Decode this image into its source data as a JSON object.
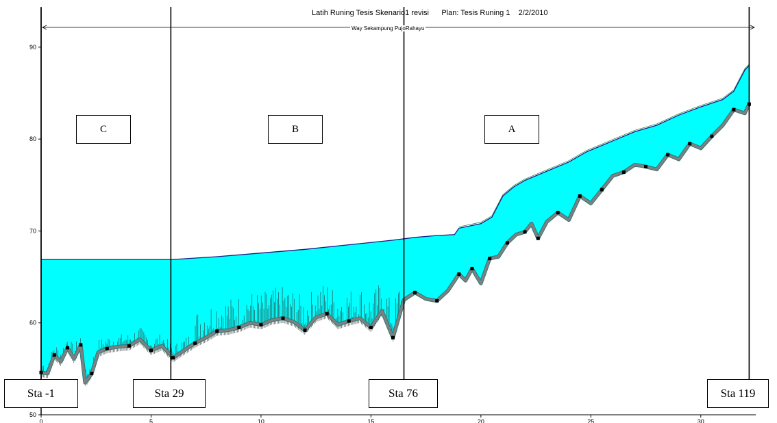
{
  "header": {
    "title": "Latih Runing Tesis Skenario1 revisi      Plan: Tesis Runing 1    2/2/2010",
    "reach_label": "Way Sekampung PujoRahayu"
  },
  "zones": [
    {
      "label": "C"
    },
    {
      "label": "B"
    },
    {
      "label": "A"
    }
  ],
  "stations": [
    {
      "label": "Sta -1",
      "x": 0.0
    },
    {
      "label": "Sta 29",
      "x": 5.9
    },
    {
      "label": "Sta 76",
      "x": 16.5
    },
    {
      "label": "Sta 119",
      "x": 32.2
    }
  ],
  "colors": {
    "water_fill": "#00FFFF",
    "water_surface": "#1a1a80",
    "channel_bed": "#808080",
    "bed_markers": "#000000",
    "edge_green": "#2e8b57"
  },
  "chart_data": {
    "type": "area",
    "title": "Latih Runing Tesis Skenario1 revisi      Plan: Tesis Runing 1    2/2/2010",
    "xlabel": "",
    "ylabel": "",
    "xlim": [
      0,
      32.5
    ],
    "ylim": [
      50,
      92
    ],
    "yticks": [
      50,
      60,
      70,
      80,
      90
    ],
    "xticks": [
      0,
      5,
      10,
      15,
      20,
      25,
      30
    ],
    "grid": false,
    "series": [
      {
        "role": "water_surface",
        "x": [
          0,
          2,
          4,
          6,
          8,
          10,
          12,
          14,
          16,
          17,
          18,
          18.8,
          19,
          20,
          20.5,
          21,
          21.5,
          22,
          23,
          24,
          24.8,
          25.2,
          26,
          27,
          28,
          29,
          30,
          31,
          31.5,
          32,
          32.2
        ],
        "values": [
          66.9,
          66.9,
          66.9,
          66.9,
          67.2,
          67.6,
          68.0,
          68.5,
          69.0,
          69.3,
          69.5,
          69.6,
          70.3,
          70.8,
          71.5,
          73.8,
          74.8,
          75.5,
          76.5,
          77.5,
          78.6,
          79.0,
          79.8,
          80.8,
          81.5,
          82.6,
          83.5,
          84.3,
          85.2,
          87.5,
          88.0
        ]
      },
      {
        "role": "channel_bed",
        "x": [
          0,
          0.3,
          0.6,
          0.9,
          1.2,
          1.5,
          1.8,
          2.0,
          2.3,
          2.6,
          3.0,
          3.5,
          4.0,
          4.5,
          5.0,
          5.5,
          6.0,
          6.5,
          7.0,
          7.5,
          8.0,
          8.5,
          9.0,
          9.5,
          10.0,
          10.5,
          11.0,
          11.5,
          12.0,
          12.5,
          13.0,
          13.5,
          14.0,
          14.5,
          15.0,
          15.5,
          16.0,
          16.5,
          17.0,
          17.5,
          18.0,
          18.5,
          19.0,
          19.3,
          19.6,
          20.0,
          20.4,
          20.8,
          21.2,
          21.6,
          22.0,
          22.3,
          22.6,
          23.0,
          23.5,
          24.0,
          24.5,
          25.0,
          25.5,
          26.0,
          26.5,
          27.0,
          27.5,
          28.0,
          28.5,
          29.0,
          29.5,
          30.0,
          30.5,
          31.0,
          31.5,
          32.0,
          32.2
        ],
        "values": [
          54.6,
          54.5,
          56.5,
          55.8,
          57.3,
          56.1,
          57.6,
          53.5,
          54.5,
          56.8,
          57.2,
          57.4,
          57.5,
          58.2,
          57.0,
          57.5,
          56.2,
          57.0,
          57.8,
          58.4,
          59.1,
          59.2,
          59.5,
          60.0,
          59.8,
          60.3,
          60.5,
          60.1,
          59.2,
          60.6,
          61.0,
          59.8,
          60.2,
          60.5,
          59.5,
          61.3,
          58.4,
          62.5,
          63.3,
          62.6,
          62.4,
          63.5,
          65.3,
          64.6,
          65.9,
          64.3,
          67.0,
          67.2,
          68.7,
          69.6,
          69.9,
          70.8,
          69.2,
          71.0,
          72.0,
          71.2,
          73.8,
          73.0,
          74.5,
          76.0,
          76.4,
          77.2,
          77.0,
          76.7,
          78.3,
          77.8,
          79.5,
          79.0,
          80.3,
          81.5,
          83.2,
          82.8,
          83.8
        ]
      }
    ]
  }
}
